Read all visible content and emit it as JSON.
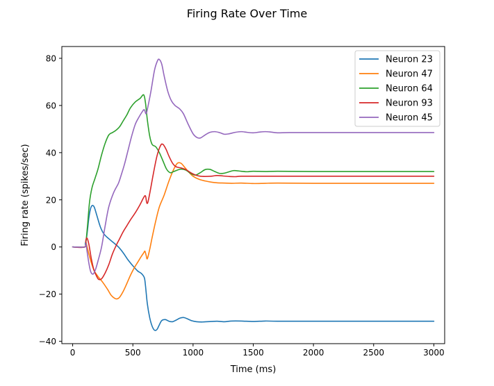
{
  "chart_data": {
    "type": "line",
    "title": "Firing Rate Over Time",
    "xlabel": "Time (ms)",
    "ylabel": "Firing rate (spikes/sec)",
    "xlim": [
      -90,
      3090
    ],
    "ylim": [
      -41,
      85
    ],
    "xticks": [
      0,
      500,
      1000,
      1500,
      2000,
      2500,
      3000
    ],
    "yticks": [
      -40,
      -20,
      0,
      20,
      40,
      60,
      80
    ],
    "xtick_labels": [
      "0",
      "500",
      "1000",
      "1500",
      "2000",
      "2500",
      "3000"
    ],
    "ytick_labels": [
      "−40",
      "−20",
      "0",
      "20",
      "40",
      "60",
      "80"
    ],
    "grid": false,
    "legend_position": "top-right",
    "series": [
      {
        "name": "Neuron 23",
        "color": "#1f77b4",
        "points": [
          [
            0,
            0
          ],
          [
            100,
            0
          ],
          [
            105,
            1.5
          ],
          [
            115,
            3.8
          ],
          [
            125,
            8
          ],
          [
            135,
            12.5
          ],
          [
            150,
            16.5
          ],
          [
            165,
            17.6
          ],
          [
            180,
            16.8
          ],
          [
            200,
            13.5
          ],
          [
            230,
            8.5
          ],
          [
            260,
            5.5
          ],
          [
            300,
            3.5
          ],
          [
            340,
            1.8
          ],
          [
            380,
            0
          ],
          [
            420,
            -2.5
          ],
          [
            460,
            -5.5
          ],
          [
            500,
            -8
          ],
          [
            540,
            -10.2
          ],
          [
            570,
            -11.2
          ],
          [
            595,
            -13
          ],
          [
            605,
            -16.5
          ],
          [
            620,
            -24
          ],
          [
            640,
            -30
          ],
          [
            660,
            -33.6
          ],
          [
            680,
            -35.3
          ],
          [
            700,
            -35
          ],
          [
            720,
            -33
          ],
          [
            740,
            -31.2
          ],
          [
            770,
            -30.8
          ],
          [
            800,
            -31.5
          ],
          [
            830,
            -31.7
          ],
          [
            860,
            -31
          ],
          [
            890,
            -30.2
          ],
          [
            920,
            -29.9
          ],
          [
            950,
            -30.4
          ],
          [
            990,
            -31.3
          ],
          [
            1030,
            -31.7
          ],
          [
            1080,
            -31.8
          ],
          [
            1150,
            -31.6
          ],
          [
            1200,
            -31.5
          ],
          [
            1260,
            -31.7
          ],
          [
            1320,
            -31.4
          ],
          [
            1400,
            -31.4
          ],
          [
            1500,
            -31.6
          ],
          [
            1600,
            -31.4
          ],
          [
            1700,
            -31.5
          ],
          [
            2000,
            -31.5
          ],
          [
            2500,
            -31.5
          ],
          [
            3000,
            -31.5
          ]
        ]
      },
      {
        "name": "Neuron 47",
        "color": "#ff7f0e",
        "points": [
          [
            0,
            0
          ],
          [
            100,
            0
          ],
          [
            110,
            2
          ],
          [
            120,
            0
          ],
          [
            140,
            -4
          ],
          [
            160,
            -7.5
          ],
          [
            180,
            -10.2
          ],
          [
            210,
            -12.5
          ],
          [
            250,
            -15
          ],
          [
            290,
            -18
          ],
          [
            320,
            -20.5
          ],
          [
            350,
            -21.8
          ],
          [
            370,
            -22
          ],
          [
            390,
            -21.3
          ],
          [
            420,
            -18.8
          ],
          [
            450,
            -15.5
          ],
          [
            480,
            -12
          ],
          [
            510,
            -9
          ],
          [
            540,
            -6.5
          ],
          [
            570,
            -4
          ],
          [
            590,
            -2.5
          ],
          [
            600,
            -1.8
          ],
          [
            610,
            -3.5
          ],
          [
            620,
            -5
          ],
          [
            640,
            -1
          ],
          [
            660,
            4
          ],
          [
            690,
            11
          ],
          [
            720,
            17
          ],
          [
            760,
            22
          ],
          [
            800,
            28
          ],
          [
            840,
            33
          ],
          [
            870,
            35.5
          ],
          [
            900,
            35.5
          ],
          [
            930,
            33.8
          ],
          [
            960,
            32
          ],
          [
            1000,
            30
          ],
          [
            1050,
            28.7
          ],
          [
            1100,
            28
          ],
          [
            1150,
            27.5
          ],
          [
            1200,
            27.2
          ],
          [
            1260,
            27.1
          ],
          [
            1320,
            27
          ],
          [
            1400,
            27.1
          ],
          [
            1500,
            26.9
          ],
          [
            1600,
            27
          ],
          [
            1700,
            27.1
          ],
          [
            2000,
            27
          ],
          [
            2500,
            27
          ],
          [
            3000,
            27
          ]
        ]
      },
      {
        "name": "Neuron 64",
        "color": "#2ca02c",
        "points": [
          [
            0,
            0
          ],
          [
            100,
            0
          ],
          [
            110,
            2
          ],
          [
            125,
            10
          ],
          [
            140,
            19
          ],
          [
            160,
            25
          ],
          [
            185,
            29
          ],
          [
            210,
            33
          ],
          [
            240,
            39
          ],
          [
            270,
            44
          ],
          [
            300,
            47.5
          ],
          [
            330,
            48.5
          ],
          [
            360,
            49.5
          ],
          [
            390,
            51
          ],
          [
            420,
            53.5
          ],
          [
            450,
            56
          ],
          [
            480,
            59
          ],
          [
            520,
            61.5
          ],
          [
            560,
            63
          ],
          [
            590,
            64.5
          ],
          [
            605,
            61
          ],
          [
            620,
            54
          ],
          [
            640,
            47
          ],
          [
            660,
            43.5
          ],
          [
            690,
            42.5
          ],
          [
            720,
            40
          ],
          [
            750,
            36.5
          ],
          [
            780,
            33
          ],
          [
            810,
            31.5
          ],
          [
            840,
            32
          ],
          [
            870,
            32.6
          ],
          [
            900,
            33
          ],
          [
            940,
            32.6
          ],
          [
            980,
            31.2
          ],
          [
            1020,
            30.5
          ],
          [
            1060,
            31.5
          ],
          [
            1100,
            32.8
          ],
          [
            1140,
            32.9
          ],
          [
            1180,
            32
          ],
          [
            1220,
            31.2
          ],
          [
            1260,
            31.3
          ],
          [
            1300,
            31.9
          ],
          [
            1340,
            32.4
          ],
          [
            1400,
            32.1
          ],
          [
            1450,
            31.9
          ],
          [
            1500,
            32.1
          ],
          [
            1600,
            32
          ],
          [
            1700,
            32.1
          ],
          [
            2000,
            32
          ],
          [
            2500,
            32
          ],
          [
            3000,
            32
          ]
        ]
      },
      {
        "name": "Neuron 93",
        "color": "#d62728",
        "points": [
          [
            0,
            0
          ],
          [
            100,
            0
          ],
          [
            110,
            3
          ],
          [
            120,
            3.7
          ],
          [
            135,
            1
          ],
          [
            155,
            -5
          ],
          [
            175,
            -9.5
          ],
          [
            195,
            -12
          ],
          [
            215,
            -13.7
          ],
          [
            240,
            -13.5
          ],
          [
            270,
            -11
          ],
          [
            300,
            -7.5
          ],
          [
            330,
            -3
          ],
          [
            360,
            0.5
          ],
          [
            390,
            3.5
          ],
          [
            420,
            6.5
          ],
          [
            450,
            9
          ],
          [
            480,
            11.5
          ],
          [
            520,
            14.5
          ],
          [
            560,
            18
          ],
          [
            590,
            21
          ],
          [
            605,
            21.6
          ],
          [
            615,
            18.8
          ],
          [
            625,
            19
          ],
          [
            645,
            24
          ],
          [
            670,
            31
          ],
          [
            700,
            38.5
          ],
          [
            730,
            43
          ],
          [
            750,
            43.5
          ],
          [
            775,
            41.5
          ],
          [
            800,
            38.5
          ],
          [
            830,
            35.5
          ],
          [
            860,
            34
          ],
          [
            900,
            33.5
          ],
          [
            940,
            32.8
          ],
          [
            980,
            31.5
          ],
          [
            1020,
            30.5
          ],
          [
            1060,
            30
          ],
          [
            1100,
            29.9
          ],
          [
            1150,
            30
          ],
          [
            1200,
            30.3
          ],
          [
            1250,
            30.1
          ],
          [
            1300,
            29.9
          ],
          [
            1350,
            29.8
          ],
          [
            1400,
            30
          ],
          [
            1500,
            30
          ],
          [
            2000,
            30
          ],
          [
            2500,
            30
          ],
          [
            3000,
            30
          ]
        ]
      },
      {
        "name": "Neuron 45",
        "color": "#9467bd",
        "points": [
          [
            0,
            0
          ],
          [
            100,
            0
          ],
          [
            110,
            1.5
          ],
          [
            120,
            -2
          ],
          [
            135,
            -7
          ],
          [
            150,
            -10.5
          ],
          [
            170,
            -11.5
          ],
          [
            190,
            -9.5
          ],
          [
            210,
            -6
          ],
          [
            240,
            0
          ],
          [
            270,
            9
          ],
          [
            300,
            17
          ],
          [
            340,
            23
          ],
          [
            380,
            27
          ],
          [
            400,
            30
          ],
          [
            430,
            35
          ],
          [
            460,
            41
          ],
          [
            490,
            47
          ],
          [
            520,
            52
          ],
          [
            550,
            55
          ],
          [
            580,
            57.5
          ],
          [
            595,
            58.2
          ],
          [
            610,
            56.5
          ],
          [
            625,
            59.5
          ],
          [
            650,
            66
          ],
          [
            680,
            75
          ],
          [
            705,
            79
          ],
          [
            720,
            79.5
          ],
          [
            740,
            77.5
          ],
          [
            760,
            72.5
          ],
          [
            790,
            66
          ],
          [
            820,
            62
          ],
          [
            850,
            60
          ],
          [
            890,
            58.5
          ],
          [
            920,
            56.5
          ],
          [
            960,
            52
          ],
          [
            1000,
            48
          ],
          [
            1030,
            46.5
          ],
          [
            1060,
            46.2
          ],
          [
            1100,
            47.5
          ],
          [
            1140,
            48.6
          ],
          [
            1180,
            48.9
          ],
          [
            1220,
            48.5
          ],
          [
            1260,
            47.8
          ],
          [
            1300,
            48
          ],
          [
            1350,
            48.6
          ],
          [
            1400,
            48.9
          ],
          [
            1450,
            48.6
          ],
          [
            1500,
            48.4
          ],
          [
            1550,
            48.7
          ],
          [
            1600,
            48.9
          ],
          [
            1650,
            48.7
          ],
          [
            1700,
            48.4
          ],
          [
            1800,
            48.5
          ],
          [
            2000,
            48.5
          ],
          [
            2500,
            48.5
          ],
          [
            3000,
            48.5
          ]
        ]
      }
    ]
  }
}
